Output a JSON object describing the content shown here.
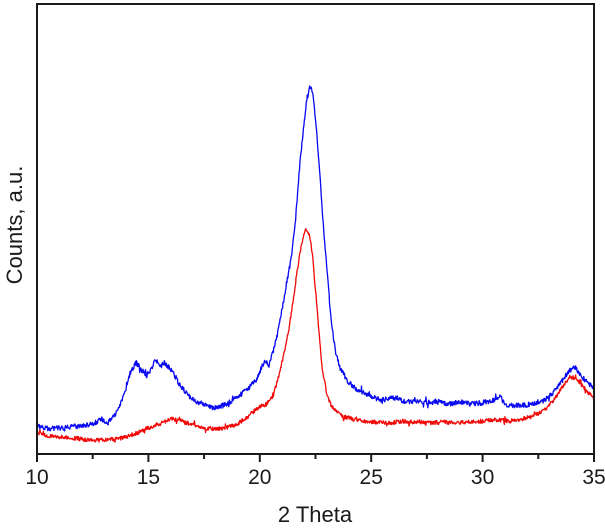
{
  "figure": {
    "background_color": "#ffffff",
    "frame_color": "#1a1a1a"
  },
  "chart_data": {
    "type": "line",
    "title": "",
    "xlabel": "2 Theta",
    "ylabel": "Counts, a.u.",
    "xlim": [
      10,
      35
    ],
    "ylim": [
      0,
      100
    ],
    "y_units": "arbitrary units, no y tick labels shown",
    "x_major_ticks": [
      10,
      15,
      20,
      25,
      30,
      35
    ],
    "x_minor_ticks": [
      12.5,
      17.5,
      22.5,
      27.5,
      32.5
    ],
    "grid": false,
    "legend_position": "none",
    "frame": "full-box",
    "tick_direction": "out-bottom-only",
    "series": [
      {
        "name": "red-pattern",
        "color": "#f20707",
        "noise_amplitude": 0.45,
        "peaks_2theta": [
          16.0,
          22.1,
          33.9
        ],
        "points": [
          [
            10.0,
            4.7
          ],
          [
            10.5,
            4.0
          ],
          [
            11.0,
            3.8
          ],
          [
            11.5,
            3.6
          ],
          [
            12.0,
            3.3
          ],
          [
            12.5,
            3.1
          ],
          [
            13.0,
            3.1
          ],
          [
            13.5,
            3.3
          ],
          [
            14.0,
            3.8
          ],
          [
            14.5,
            4.7
          ],
          [
            15.0,
            5.8
          ],
          [
            15.5,
            6.7
          ],
          [
            16.0,
            7.8
          ],
          [
            16.3,
            7.6
          ],
          [
            16.6,
            7.1
          ],
          [
            17.0,
            6.5
          ],
          [
            17.5,
            5.8
          ],
          [
            18.0,
            5.6
          ],
          [
            18.5,
            5.8
          ],
          [
            19.0,
            6.7
          ],
          [
            19.4,
            8.0
          ],
          [
            19.8,
            9.8
          ],
          [
            20.0,
            10.5
          ],
          [
            20.3,
            11.1
          ],
          [
            20.6,
            12.9
          ],
          [
            20.9,
            18.3
          ],
          [
            21.1,
            22.7
          ],
          [
            21.3,
            27.6
          ],
          [
            21.5,
            34.3
          ],
          [
            21.7,
            41.4
          ],
          [
            21.85,
            45.9
          ],
          [
            22.0,
            49.0
          ],
          [
            22.1,
            50.1
          ],
          [
            22.2,
            49.0
          ],
          [
            22.35,
            45.0
          ],
          [
            22.5,
            36.5
          ],
          [
            22.65,
            27.6
          ],
          [
            22.8,
            19.2
          ],
          [
            23.0,
            13.4
          ],
          [
            23.2,
            10.7
          ],
          [
            23.5,
            9.1
          ],
          [
            23.8,
            8.2
          ],
          [
            24.2,
            7.8
          ],
          [
            24.7,
            7.3
          ],
          [
            25.2,
            7.1
          ],
          [
            25.8,
            6.9
          ],
          [
            26.4,
            7.3
          ],
          [
            27.0,
            7.1
          ],
          [
            27.6,
            6.9
          ],
          [
            28.2,
            7.1
          ],
          [
            28.8,
            6.9
          ],
          [
            29.4,
            7.1
          ],
          [
            30.0,
            7.3
          ],
          [
            30.6,
            7.6
          ],
          [
            31.2,
            7.3
          ],
          [
            31.8,
            7.8
          ],
          [
            32.3,
            8.5
          ],
          [
            32.8,
            9.8
          ],
          [
            33.2,
            12.0
          ],
          [
            33.6,
            15.1
          ],
          [
            33.9,
            17.1
          ],
          [
            34.1,
            16.9
          ],
          [
            34.4,
            15.6
          ],
          [
            34.7,
            13.8
          ],
          [
            35.0,
            12.5
          ]
        ]
      },
      {
        "name": "blue-pattern",
        "color": "#0707f2",
        "noise_amplitude": 0.55,
        "peaks_2theta": [
          14.5,
          15.5,
          20.2,
          22.3,
          34.0
        ],
        "points": [
          [
            10.0,
            6.2
          ],
          [
            10.5,
            5.6
          ],
          [
            11.0,
            5.8
          ],
          [
            11.5,
            6.0
          ],
          [
            12.0,
            6.2
          ],
          [
            12.5,
            6.7
          ],
          [
            12.9,
            7.8
          ],
          [
            13.2,
            7.0
          ],
          [
            13.6,
            9.4
          ],
          [
            14.0,
            14.3
          ],
          [
            14.2,
            18.3
          ],
          [
            14.45,
            20.3
          ],
          [
            14.7,
            18.7
          ],
          [
            14.9,
            17.4
          ],
          [
            15.1,
            18.7
          ],
          [
            15.35,
            21.0
          ],
          [
            15.5,
            19.2
          ],
          [
            15.7,
            20.3
          ],
          [
            15.9,
            19.4
          ],
          [
            16.1,
            18.3
          ],
          [
            16.4,
            15.4
          ],
          [
            16.8,
            12.9
          ],
          [
            17.2,
            11.6
          ],
          [
            17.6,
            10.7
          ],
          [
            18.0,
            10.2
          ],
          [
            18.4,
            10.9
          ],
          [
            18.8,
            12.0
          ],
          [
            19.2,
            13.4
          ],
          [
            19.6,
            15.1
          ],
          [
            19.9,
            16.9
          ],
          [
            20.1,
            19.6
          ],
          [
            20.25,
            20.5
          ],
          [
            20.4,
            19.6
          ],
          [
            20.6,
            22.7
          ],
          [
            20.8,
            26.7
          ],
          [
            21.0,
            32.1
          ],
          [
            21.2,
            37.9
          ],
          [
            21.4,
            43.2
          ],
          [
            21.6,
            51.7
          ],
          [
            21.8,
            64.6
          ],
          [
            22.0,
            73.9
          ],
          [
            22.1,
            78.8
          ],
          [
            22.28,
            82.0
          ],
          [
            22.4,
            79.7
          ],
          [
            22.5,
            74.4
          ],
          [
            22.65,
            65.5
          ],
          [
            22.8,
            54.3
          ],
          [
            23.0,
            41.9
          ],
          [
            23.2,
            29.8
          ],
          [
            23.4,
            22.7
          ],
          [
            23.6,
            19.2
          ],
          [
            23.9,
            16.5
          ],
          [
            24.2,
            14.9
          ],
          [
            24.6,
            13.8
          ],
          [
            25.0,
            12.7
          ],
          [
            25.5,
            12.0
          ],
          [
            26.0,
            12.5
          ],
          [
            26.5,
            11.6
          ],
          [
            27.0,
            11.8
          ],
          [
            27.5,
            11.4
          ],
          [
            28.0,
            11.6
          ],
          [
            28.5,
            11.1
          ],
          [
            29.0,
            11.6
          ],
          [
            29.5,
            11.1
          ],
          [
            30.0,
            11.4
          ],
          [
            30.5,
            12.0
          ],
          [
            30.8,
            12.7
          ],
          [
            31.0,
            11.1
          ],
          [
            31.4,
            10.7
          ],
          [
            32.0,
            10.9
          ],
          [
            32.4,
            11.4
          ],
          [
            32.8,
            12.0
          ],
          [
            33.2,
            13.8
          ],
          [
            33.6,
            16.5
          ],
          [
            33.9,
            18.5
          ],
          [
            34.1,
            19.2
          ],
          [
            34.3,
            18.3
          ],
          [
            34.6,
            16.3
          ],
          [
            34.8,
            15.4
          ],
          [
            35.0,
            14.7
          ]
        ]
      }
    ]
  }
}
